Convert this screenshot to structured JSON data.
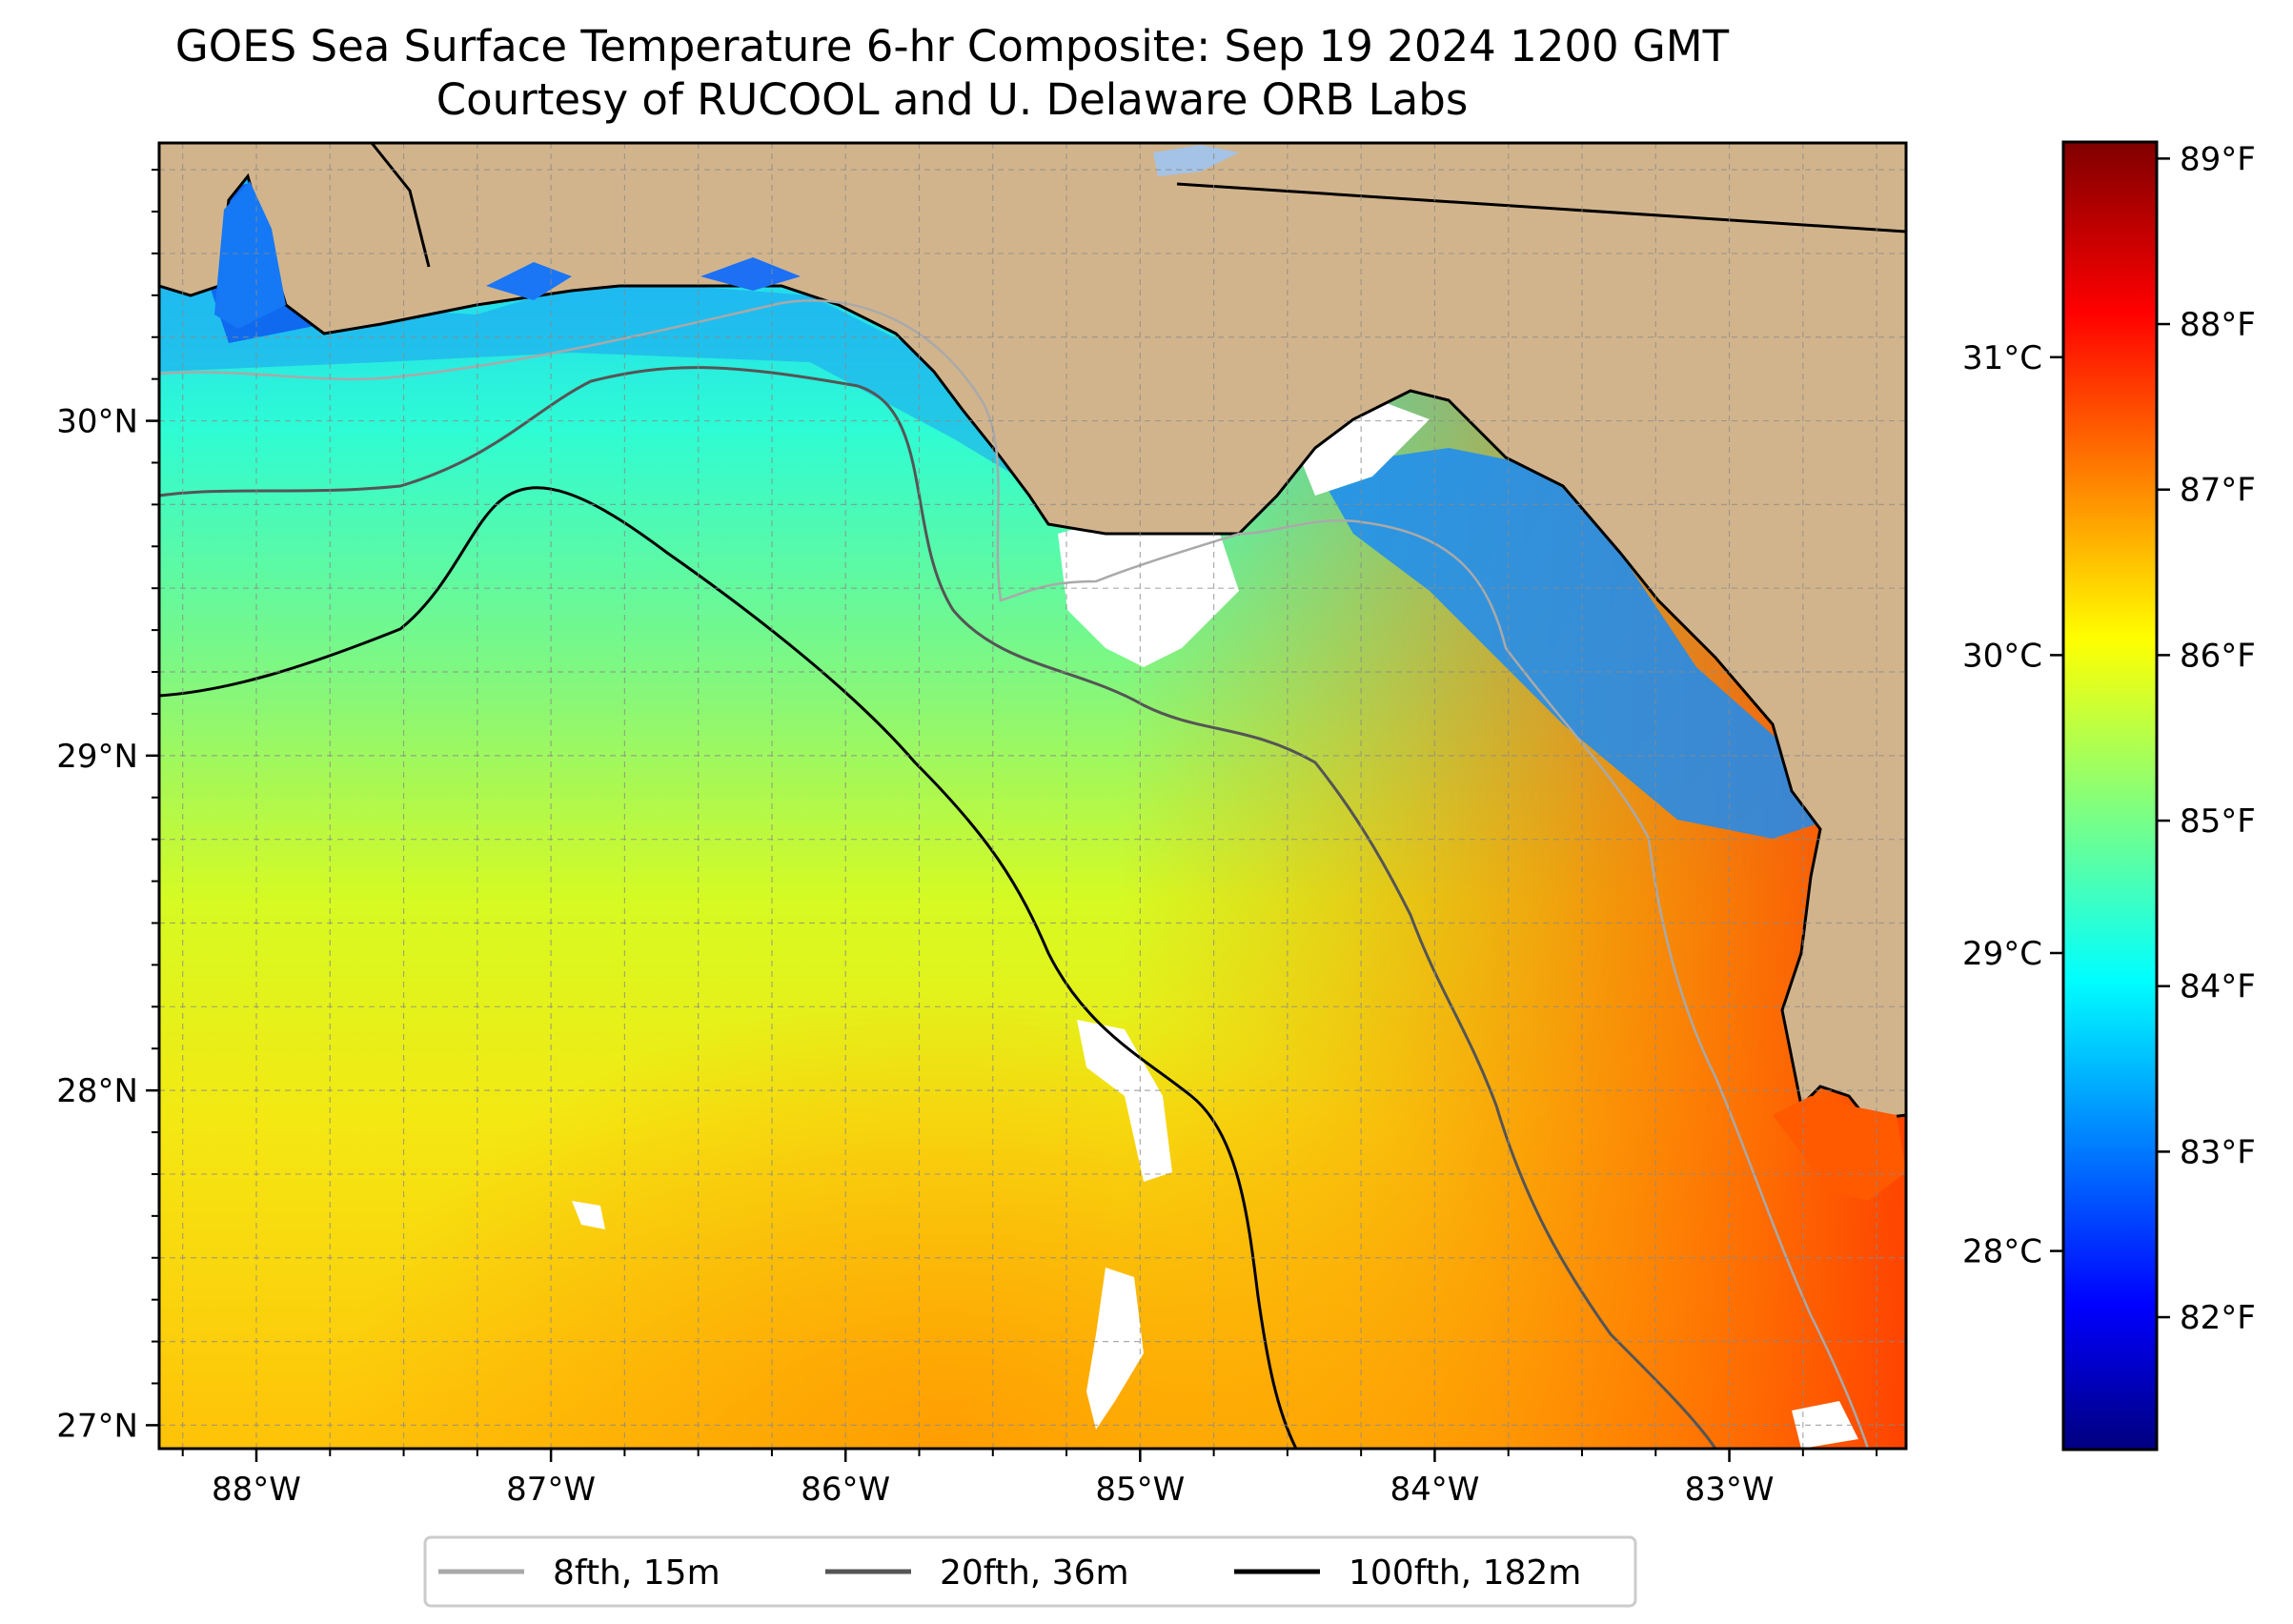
{
  "title": {
    "line1": "GOES Sea Surface Temperature 6-hr Composite: Sep 19 2024 1200 GMT",
    "line2": "Courtesy of RUCOOL and U. Delaware ORB Labs"
  },
  "map": {
    "lon_range": [
      -88.33,
      -82.4
    ],
    "lat_range": [
      26.93,
      30.83
    ],
    "lon_ticks": [
      {
        "value": -88,
        "label": "88°W"
      },
      {
        "value": -87,
        "label": "87°W"
      },
      {
        "value": -86,
        "label": "86°W"
      },
      {
        "value": -85,
        "label": "85°W"
      },
      {
        "value": -84,
        "label": "84°W"
      },
      {
        "value": -83,
        "label": "83°W"
      }
    ],
    "lat_ticks": [
      {
        "value": 27,
        "label": "27°N"
      },
      {
        "value": 28,
        "label": "28°N"
      },
      {
        "value": 29,
        "label": "29°N"
      },
      {
        "value": 30,
        "label": "30°N"
      }
    ],
    "grid": true,
    "colors": {
      "land": "#d2b48c",
      "cloud_mask": "#ffffff",
      "contour_15m": "#a9a9a9",
      "contour_36m": "#555555",
      "contour_182m": "#000000"
    }
  },
  "colorbar": {
    "colormap": "jet",
    "fahrenheit_ticks": [
      {
        "value": 82,
        "label": "82°F"
      },
      {
        "value": 83,
        "label": "83°F"
      },
      {
        "value": 84,
        "label": "84°F"
      },
      {
        "value": 85,
        "label": "85°F"
      },
      {
        "value": 86,
        "label": "86°F"
      },
      {
        "value": 87,
        "label": "87°F"
      },
      {
        "value": 88,
        "label": "88°F"
      },
      {
        "value": 89,
        "label": "89°F"
      }
    ],
    "celsius_ticks": [
      {
        "value": 28,
        "label": "28°C"
      },
      {
        "value": 29,
        "label": "29°C"
      },
      {
        "value": 30,
        "label": "30°C"
      },
      {
        "value": 31,
        "label": "31°C"
      }
    ],
    "range_f": [
      81.2,
      89.1
    ]
  },
  "legend": {
    "placement": "bottom-center",
    "items": [
      {
        "label": "8fth, 15m",
        "color": "#a9a9a9"
      },
      {
        "label": "20fth, 36m",
        "color": "#555555"
      },
      {
        "label": "100fth, 182m",
        "color": "#000000"
      }
    ]
  }
}
